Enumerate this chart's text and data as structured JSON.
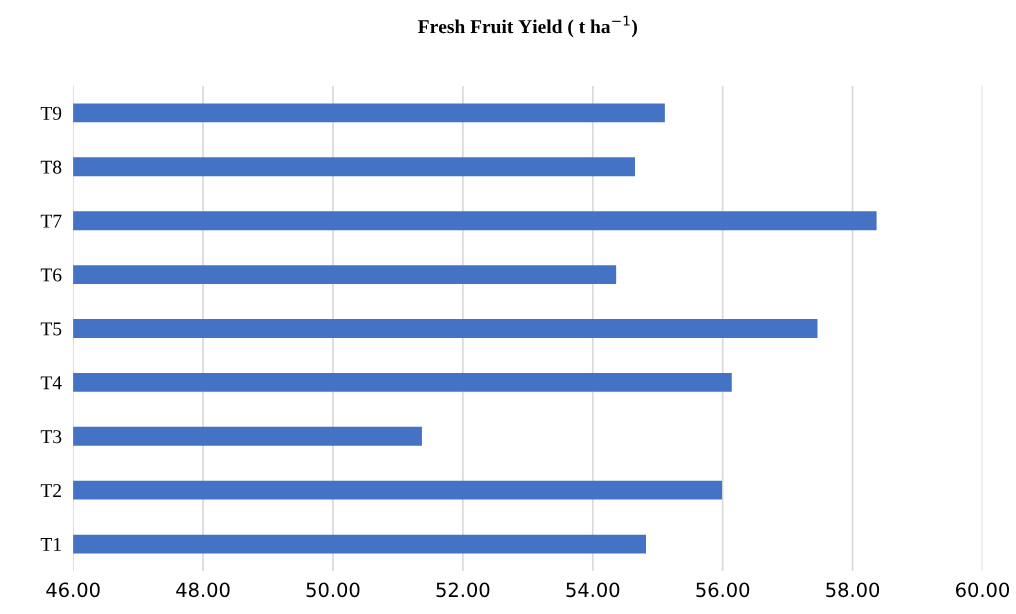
{
  "chart_data": {
    "type": "bar",
    "orientation": "horizontal",
    "title": "Fresh Fruit Yield ( t ha$^{−1}$)",
    "categories": [
      "T9",
      "T8",
      "T7",
      "T6",
      "T5",
      "T4",
      "T3",
      "T2",
      "T1"
    ],
    "values": [
      55.11,
      54.65,
      58.37,
      54.36,
      57.46,
      56.14,
      51.37,
      55.99,
      54.82
    ],
    "color": "#4472c4",
    "xlim": [
      46,
      60
    ],
    "xticks": [
      {
        "value": 46,
        "label": "46.00"
      },
      {
        "value": 48,
        "label": "48.00"
      },
      {
        "value": 50,
        "label": "50.00"
      },
      {
        "value": 52,
        "label": "52.00"
      },
      {
        "value": 54,
        "label": "54.00"
      },
      {
        "value": 56,
        "label": "56.00"
      },
      {
        "value": 58,
        "label": "58.00"
      },
      {
        "value": 60,
        "label": "60.00"
      }
    ],
    "grid": "x"
  }
}
